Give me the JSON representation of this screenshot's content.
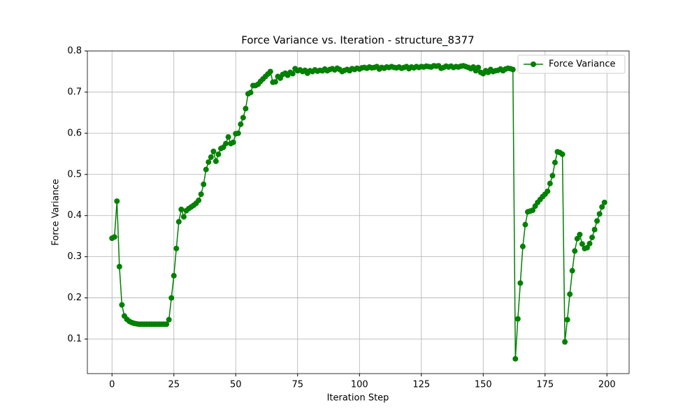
{
  "chart_data": {
    "type": "line",
    "title": "Force Variance vs. Iteration - structure_8377",
    "x_label": "Iteration Step",
    "y_label": "Force Variance",
    "x": [
      0,
      1,
      2,
      3,
      4,
      5,
      6,
      7,
      8,
      9,
      10,
      11,
      12,
      13,
      14,
      15,
      16,
      17,
      18,
      19,
      20,
      21,
      22,
      23,
      24,
      25,
      26,
      27,
      28,
      29,
      30,
      31,
      32,
      33,
      34,
      35,
      36,
      37,
      38,
      39,
      40,
      41,
      42,
      43,
      44,
      45,
      46,
      47,
      48,
      49,
      50,
      51,
      52,
      53,
      54,
      55,
      56,
      57,
      58,
      59,
      60,
      61,
      62,
      63,
      64,
      65,
      66,
      67,
      68,
      69,
      70,
      71,
      72,
      73,
      74,
      75,
      76,
      77,
      78,
      79,
      80,
      81,
      82,
      83,
      84,
      85,
      86,
      87,
      88,
      89,
      90,
      91,
      92,
      93,
      94,
      95,
      96,
      97,
      98,
      99,
      100,
      101,
      102,
      103,
      104,
      105,
      106,
      107,
      108,
      109,
      110,
      111,
      112,
      113,
      114,
      115,
      116,
      117,
      118,
      119,
      120,
      121,
      122,
      123,
      124,
      125,
      126,
      127,
      128,
      129,
      130,
      131,
      132,
      133,
      134,
      135,
      136,
      137,
      138,
      139,
      140,
      141,
      142,
      143,
      144,
      145,
      146,
      147,
      148,
      149,
      150,
      151,
      152,
      153,
      154,
      155,
      156,
      157,
      158,
      159,
      160,
      161,
      162,
      163,
      164,
      165,
      166,
      167,
      168,
      169,
      170,
      171,
      172,
      173,
      174,
      175,
      176,
      177,
      178,
      179,
      180,
      181,
      182,
      183,
      184,
      185,
      186,
      187,
      188,
      189,
      190,
      191,
      192,
      193,
      194,
      195,
      196,
      197,
      198,
      199
    ],
    "series": [
      {
        "name": "Force Variance",
        "color": "#008000",
        "values": [
          0.345,
          0.348,
          0.435,
          0.276,
          0.183,
          0.156,
          0.148,
          0.143,
          0.14,
          0.138,
          0.137,
          0.136,
          0.136,
          0.136,
          0.136,
          0.136,
          0.136,
          0.136,
          0.136,
          0.136,
          0.136,
          0.136,
          0.136,
          0.147,
          0.2,
          0.254,
          0.32,
          0.385,
          0.415,
          0.397,
          0.412,
          0.417,
          0.421,
          0.425,
          0.43,
          0.437,
          0.452,
          0.476,
          0.512,
          0.53,
          0.542,
          0.556,
          0.532,
          0.549,
          0.563,
          0.566,
          0.575,
          0.591,
          0.575,
          0.578,
          0.599,
          0.6,
          0.622,
          0.638,
          0.66,
          0.696,
          0.699,
          0.716,
          0.716,
          0.719,
          0.726,
          0.732,
          0.738,
          0.744,
          0.75,
          0.724,
          0.725,
          0.738,
          0.734,
          0.743,
          0.746,
          0.741,
          0.748,
          0.745,
          0.757,
          0.752,
          0.754,
          0.75,
          0.753,
          0.746,
          0.752,
          0.75,
          0.754,
          0.751,
          0.753,
          0.752,
          0.756,
          0.752,
          0.755,
          0.757,
          0.754,
          0.758,
          0.755,
          0.75,
          0.753,
          0.755,
          0.752,
          0.757,
          0.755,
          0.758,
          0.756,
          0.759,
          0.76,
          0.758,
          0.761,
          0.759,
          0.76,
          0.762,
          0.756,
          0.76,
          0.758,
          0.761,
          0.76,
          0.762,
          0.76,
          0.759,
          0.761,
          0.758,
          0.76,
          0.762,
          0.757,
          0.761,
          0.759,
          0.762,
          0.76,
          0.762,
          0.761,
          0.763,
          0.762,
          0.761,
          0.764,
          0.763,
          0.764,
          0.758,
          0.76,
          0.763,
          0.761,
          0.763,
          0.76,
          0.762,
          0.761,
          0.763,
          0.764,
          0.762,
          0.76,
          0.757,
          0.761,
          0.752,
          0.76,
          0.748,
          0.745,
          0.752,
          0.748,
          0.755,
          0.75,
          0.752,
          0.753,
          0.756,
          0.752,
          0.756,
          0.758,
          0.757,
          0.755,
          0.052,
          0.149,
          0.236,
          0.325,
          0.378,
          0.409,
          0.411,
          0.413,
          0.423,
          0.432,
          0.439,
          0.446,
          0.452,
          0.459,
          0.478,
          0.497,
          0.529,
          0.555,
          0.553,
          0.549,
          0.093,
          0.147,
          0.209,
          0.266,
          0.314,
          0.344,
          0.354,
          0.331,
          0.32,
          0.322,
          0.332,
          0.347,
          0.366,
          0.387,
          0.404,
          0.421,
          0.432
        ]
      }
    ],
    "xlim": [
      -9.95,
      208.95
    ],
    "xticks": [
      0,
      25,
      50,
      75,
      100,
      125,
      150,
      175,
      200
    ],
    "ylim": [
      0.016,
      0.8
    ],
    "yticks": [
      0.1,
      0.2,
      0.3,
      0.4,
      0.5,
      0.6,
      0.7,
      0.8
    ],
    "grid": true,
    "legend": "upper right"
  }
}
